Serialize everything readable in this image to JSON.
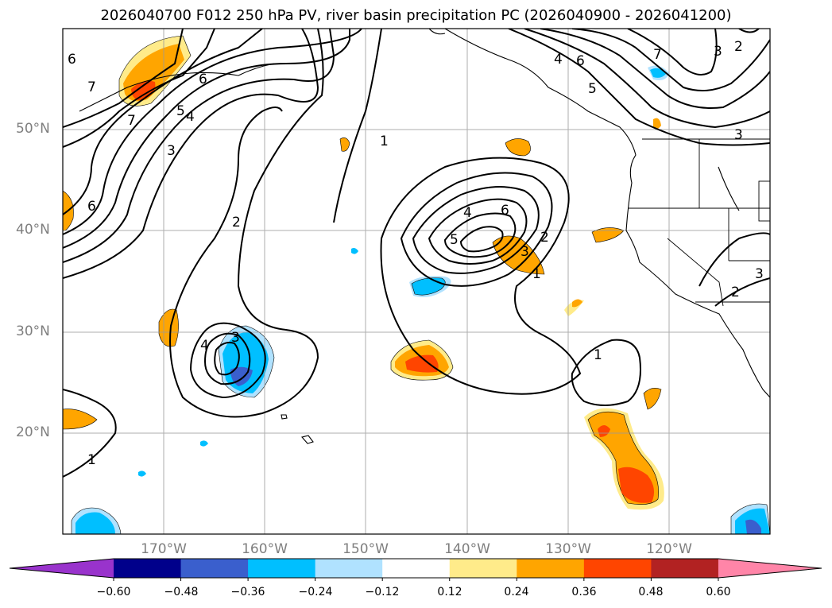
{
  "title": "2026040700 F012 250 hPa PV, river basin precipitation PC (2026040900 - 2026041200)",
  "map": {
    "lat_labels": [
      "50°N",
      "40°N",
      "30°N",
      "20°N"
    ],
    "lon_labels": [
      "170°W",
      "160°W",
      "150°W",
      "140°W",
      "130°W",
      "120°W"
    ],
    "extent": {
      "lon_min": -180,
      "lon_max": -110,
      "lat_min": 10,
      "lat_max": 60
    },
    "pv_contour_labels": [
      "1",
      "2",
      "3",
      "4",
      "5",
      "6",
      "7"
    ],
    "colors": {
      "gridline": "#999999",
      "coastline": "#000000",
      "land": "#ffffff",
      "ocean": "#ffffff"
    }
  },
  "colorbar": {
    "ticks": [
      "−0.60",
      "−0.48",
      "−0.36",
      "−0.24",
      "−0.12",
      "0.12",
      "0.24",
      "0.36",
      "0.48",
      "0.60"
    ],
    "colors": [
      "#9933cc",
      "#00008b",
      "#3a5fcd",
      "#00bfff",
      "#b0e2ff",
      "#ffffff",
      "#ffeb8a",
      "#ffa500",
      "#ff4500",
      "#b22222",
      "#ff85a8"
    ],
    "extend": "both"
  }
}
